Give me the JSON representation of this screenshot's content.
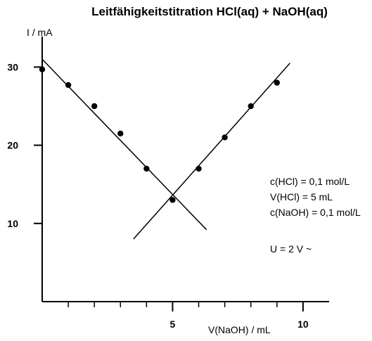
{
  "chart_data": {
    "type": "scatter",
    "title": "Leitfähigkeitstitration HCl(aq) + NaOH(aq)",
    "xlabel": "V(NaOH) / mL",
    "ylabel": "I / mA",
    "xlim": [
      0,
      11
    ],
    "ylim": [
      0,
      33
    ],
    "x_ticks": [
      1,
      2,
      3,
      4,
      5,
      6,
      7,
      8,
      9,
      10
    ],
    "x_tick_labels": [
      {
        "value": 5,
        "label": "5"
      },
      {
        "value": 10,
        "label": "10"
      }
    ],
    "y_ticks": [
      10,
      20,
      30
    ],
    "y_tick_labels": [
      {
        "value": 10,
        "label": "10"
      },
      {
        "value": 20,
        "label": "20"
      },
      {
        "value": 30,
        "label": "30"
      }
    ],
    "grid": false,
    "series": [
      {
        "points": [
          {
            "x": 0,
            "y": 29.7
          },
          {
            "x": 1,
            "y": 27.7
          },
          {
            "x": 2,
            "y": 25.0
          },
          {
            "x": 3,
            "y": 21.5
          },
          {
            "x": 4,
            "y": 17.0
          },
          {
            "x": 5,
            "y": 13.0
          },
          {
            "x": 6,
            "y": 17.0
          },
          {
            "x": 7,
            "y": 21.0
          },
          {
            "x": 8,
            "y": 25.0
          },
          {
            "x": 9,
            "y": 28.0
          }
        ]
      }
    ],
    "fit_lines": [
      {
        "x1": 0,
        "y1": 31.0,
        "x2": 6.3,
        "y2": 9.2
      },
      {
        "x1": 3.5,
        "y1": 8.0,
        "x2": 9.5,
        "y2": 30.5
      }
    ],
    "annotations": [
      "c(HCl) = 0,1 mol/L",
      "V(HCl) = 5 mL",
      "c(NaOH) = 0,1 mol/L",
      "U = 2 V ~"
    ]
  }
}
